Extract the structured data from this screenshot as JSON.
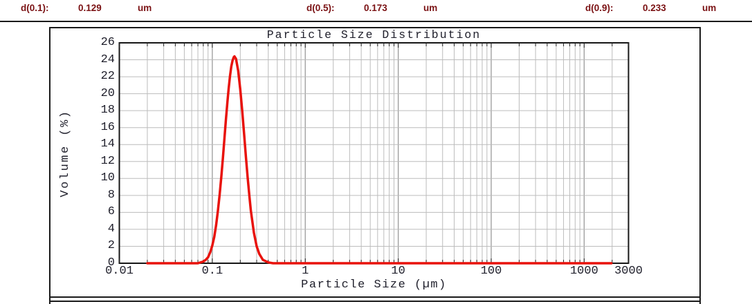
{
  "header": {
    "stats": [
      {
        "label": "d(0.1):",
        "value": "0.129",
        "unit": "um"
      },
      {
        "label": "d(0.5):",
        "value": "0.173",
        "unit": "um"
      },
      {
        "label": "d(0.9):",
        "value": "0.233",
        "unit": "um"
      }
    ],
    "text_color": "#7a1113"
  },
  "chart_data": {
    "type": "line",
    "title": "Particle Size Distribution",
    "xlabel": "Particle Size (µm)",
    "ylabel": "Volume (%)",
    "x_scale": "log",
    "xlim": [
      0.01,
      3000
    ],
    "ylim": [
      0,
      26
    ],
    "x_ticks": [
      0.01,
      0.1,
      1,
      10,
      100,
      1000,
      3000
    ],
    "x_tick_labels": [
      "0.01",
      "0.1",
      "1",
      "10",
      "100",
      "1000",
      "3000"
    ],
    "y_ticks": [
      0,
      2,
      4,
      6,
      8,
      10,
      12,
      14,
      16,
      18,
      20,
      22,
      24,
      26
    ],
    "grid": true,
    "legend": "none",
    "peak": {
      "x_um": 0.173,
      "volume_pct": 24.4
    },
    "series": [
      {
        "name": "volume-distribution",
        "color": "#e8120c",
        "points": [
          [
            0.02,
            0
          ],
          [
            0.05,
            0
          ],
          [
            0.07,
            0
          ],
          [
            0.08,
            0.2
          ],
          [
            0.085,
            0.4
          ],
          [
            0.09,
            0.7
          ],
          [
            0.095,
            1.3
          ],
          [
            0.1,
            2.1
          ],
          [
            0.105,
            3.1
          ],
          [
            0.11,
            4.5
          ],
          [
            0.115,
            6.2
          ],
          [
            0.12,
            8.1
          ],
          [
            0.125,
            10.2
          ],
          [
            0.13,
            12.4
          ],
          [
            0.135,
            14.7
          ],
          [
            0.14,
            16.9
          ],
          [
            0.145,
            18.9
          ],
          [
            0.15,
            20.6
          ],
          [
            0.155,
            22.1
          ],
          [
            0.16,
            23.2
          ],
          [
            0.165,
            23.9
          ],
          [
            0.17,
            24.3
          ],
          [
            0.173,
            24.4
          ],
          [
            0.18,
            24.1
          ],
          [
            0.19,
            22.7
          ],
          [
            0.2,
            20.5
          ],
          [
            0.21,
            17.9
          ],
          [
            0.22,
            15.2
          ],
          [
            0.23,
            12.5
          ],
          [
            0.24,
            10.1
          ],
          [
            0.25,
            8.0
          ],
          [
            0.26,
            6.2
          ],
          [
            0.28,
            3.6
          ],
          [
            0.3,
            2.0
          ],
          [
            0.32,
            1.1
          ],
          [
            0.35,
            0.4
          ],
          [
            0.4,
            0.1
          ],
          [
            0.45,
            0
          ],
          [
            0.6,
            0
          ],
          [
            1,
            0
          ],
          [
            10,
            0
          ],
          [
            100,
            0
          ],
          [
            1000,
            0
          ],
          [
            1960,
            0
          ]
        ]
      }
    ],
    "colors": {
      "curve": "#e8120c",
      "grid_minor": "#bcbcbc",
      "grid_major": "#9a9a9a",
      "frame": "#161616",
      "text": "#20202c"
    }
  }
}
